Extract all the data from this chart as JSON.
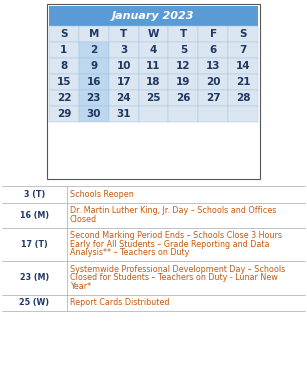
{
  "title": "January 2023",
  "title_bg": "#5b9bd5",
  "title_color": "#ffffff",
  "day_headers": [
    "S",
    "M",
    "T",
    "W",
    "T",
    "F",
    "S"
  ],
  "calendar_days": [
    [
      1,
      2,
      3,
      4,
      5,
      6,
      7
    ],
    [
      8,
      9,
      10,
      11,
      12,
      13,
      14
    ],
    [
      15,
      16,
      17,
      18,
      19,
      20,
      21
    ],
    [
      22,
      23,
      24,
      25,
      26,
      27,
      28
    ],
    [
      29,
      30,
      31,
      0,
      0,
      0,
      0
    ]
  ],
  "highlighted_days": [
    2,
    9,
    16,
    23,
    30
  ],
  "cell_bg_highlight": "#bdd7ee",
  "cell_bg_normal": "#dce6f1",
  "cell_bg_white": "#ffffff",
  "header_row_bg": "#dce6f1",
  "cal_border": "#9dc3e6",
  "events": [
    {
      "date": "3 (T)",
      "desc_lines": [
        "Schools Reopen"
      ]
    },
    {
      "date": "16 (M)",
      "desc_lines": [
        "Dr. Martin Luther King, Jr. Day – Schools and Offices",
        "Closed"
      ]
    },
    {
      "date": "17 (T)",
      "desc_lines": [
        "Second Marking Period Ends – Schools Close 3 Hours",
        "Early for All Students – Grade Reporting and Data",
        "Analysis** – Teachers on Duty"
      ]
    },
    {
      "date": "23 (M)",
      "desc_lines": [
        "Systemwide Professional Development Day – Schools",
        "Closed for Students – Teachers on Duty - Lunar New",
        "Year*"
      ]
    },
    {
      "date": "25 (W)",
      "desc_lines": [
        "Report Cards Distributed"
      ]
    }
  ],
  "event_date_color": "#1f3864",
  "event_desc_color": "#c55a11",
  "event_fontsize": 5.8,
  "date_fontsize": 5.8,
  "cal_day_fontsize": 7.5,
  "cal_header_fontsize": 7.5,
  "cal_title_fontsize": 8.0
}
